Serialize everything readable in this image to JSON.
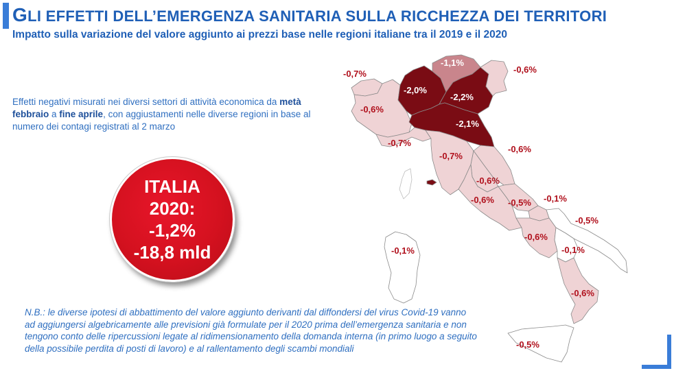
{
  "title": {
    "first_letter": "G",
    "rest": "LI EFFETTI DELL’EMERGENZA SANITARIA SULLA RICCHEZZA DEI TERRITORI"
  },
  "subtitle": "Impatto sulla variazione del valore aggiunto ai prezzi base nelle regioni italiane tra il 2019 e il 2020",
  "description": {
    "part1": "Effetti negativi misurati nei diversi settori di attività economica da ",
    "bold1": "metà febbraio",
    "part2": " a ",
    "bold2": "fine aprile",
    "part3": ", con aggiustamenti nelle diverse regioni in base al numero dei contagi registrati al 2 marzo"
  },
  "italia": {
    "line1": "ITALIA",
    "line2": "2020:",
    "line3": "-1,2%",
    "line4": "-18,8 mld"
  },
  "note": "N.B.: le diverse ipotesi di abbattimento del valore aggiunto derivanti dal diffondersi del virus Covid-19 vanno ad aggiungersi algebricamente alle previsioni già formulate per il 2020 prima dell’emergenza sanitaria e non tengono conto delle ripercussioni legate al ridimensionamento della domanda interna (in primo luogo a seguito della possibile perdita di posti di lavoro) e al rallentamento degli scambi mondiali",
  "colors": {
    "accent_blue": "#1f5fb6",
    "text_blue": "#2f6fc0",
    "dark_red": "#7a0c14",
    "mid_red": "#c9858c",
    "light_pink": "#efd3d5",
    "white_region": "#ffffff",
    "label_red": "#b0101c"
  },
  "regions": [
    {
      "name": "Valle d'Aosta",
      "value": "-0,7%"
    },
    {
      "name": "Piemonte",
      "value": "-0,6%"
    },
    {
      "name": "Lombardia",
      "value": "-2,0%"
    },
    {
      "name": "Trentino-Alto Adige",
      "value": "-1,1%"
    },
    {
      "name": "Veneto",
      "value": "-2,2%"
    },
    {
      "name": "Friuli-Venezia Giulia",
      "value": "-0,6%"
    },
    {
      "name": "Liguria",
      "value": "-0,7%"
    },
    {
      "name": "Emilia-Romagna",
      "value": "-2,1%"
    },
    {
      "name": "Toscana",
      "value": "-0,7%"
    },
    {
      "name": "Marche",
      "value": "-0,6%"
    },
    {
      "name": "Umbria",
      "value": "-0,6%"
    },
    {
      "name": "Lazio",
      "value": "-0,6%"
    },
    {
      "name": "Abruzzo",
      "value": "-0,5%"
    },
    {
      "name": "Molise",
      "value": "-0,1%"
    },
    {
      "name": "Puglia",
      "value": "-0,5%"
    },
    {
      "name": "Campania",
      "value": "-0,6%"
    },
    {
      "name": "Basilicata",
      "value": "-0,1%"
    },
    {
      "name": "Calabria",
      "value": "-0,6%"
    },
    {
      "name": "Sicilia",
      "value": "-0,5%"
    },
    {
      "name": "Sardegna",
      "value": "-0,1%"
    }
  ]
}
